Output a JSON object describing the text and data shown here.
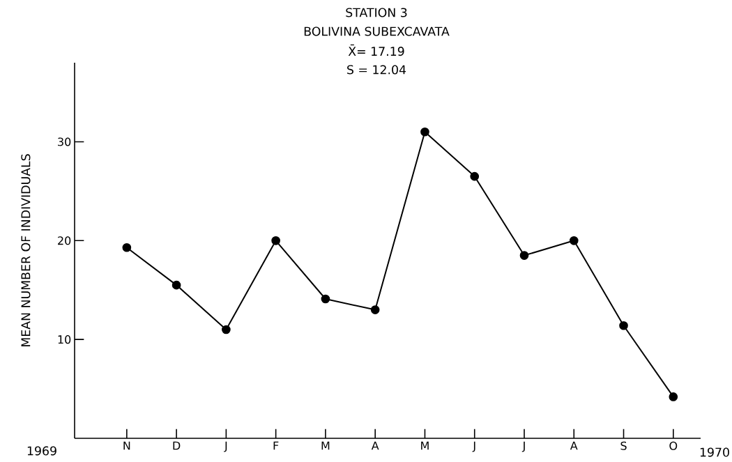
{
  "chart_data": {
    "type": "line",
    "title": "STATION 3",
    "subtitle": "BOLIVINA SUBEXCAVATA",
    "annotations": [
      "X̄= 17.19",
      "S = 12.04",
      "1969",
      "1970"
    ],
    "ylabel": "MEAN NUMBER OF INDIVIDUALS",
    "categories": [
      "N",
      "D",
      "J",
      "F",
      "M",
      "A",
      "M",
      "J",
      "J",
      "A",
      "S",
      "O"
    ],
    "values": [
      19.3,
      15.5,
      11.0,
      20.0,
      14.1,
      13.0,
      31.0,
      26.5,
      18.5,
      20.0,
      11.4,
      4.2
    ],
    "color": "#000000",
    "marker": "circle",
    "line_style": "solid",
    "ylim": [
      0,
      38
    ],
    "yticks": [
      10,
      20,
      30
    ]
  }
}
